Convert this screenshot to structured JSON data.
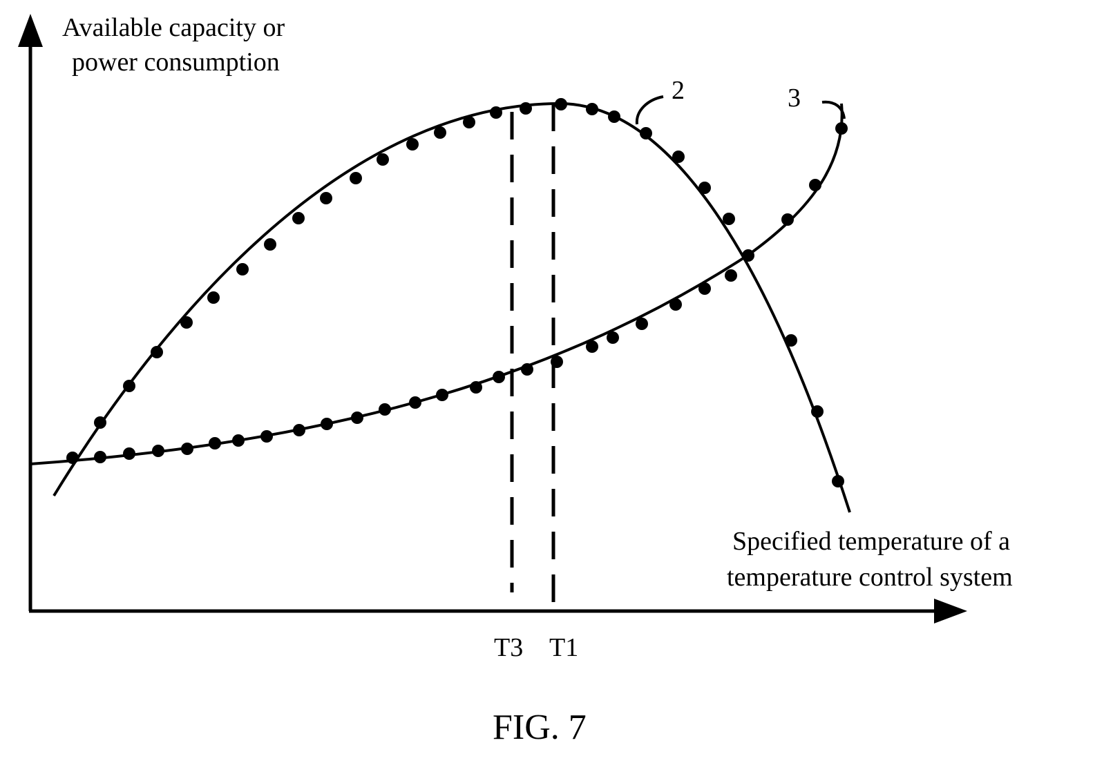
{
  "figure": {
    "caption": "FIG. 7",
    "y_axis_label": [
      "Available capacity or",
      "power consumption"
    ],
    "x_axis_label": [
      "Specified temperature of a",
      "temperature control system"
    ],
    "tick_labels": {
      "t3": "T3",
      "t1": "T1"
    },
    "curve_labels": {
      "curve_2": "2",
      "curve_3": "3"
    },
    "colors": {
      "ink": "#000000",
      "background": "#ffffff"
    }
  }
}
